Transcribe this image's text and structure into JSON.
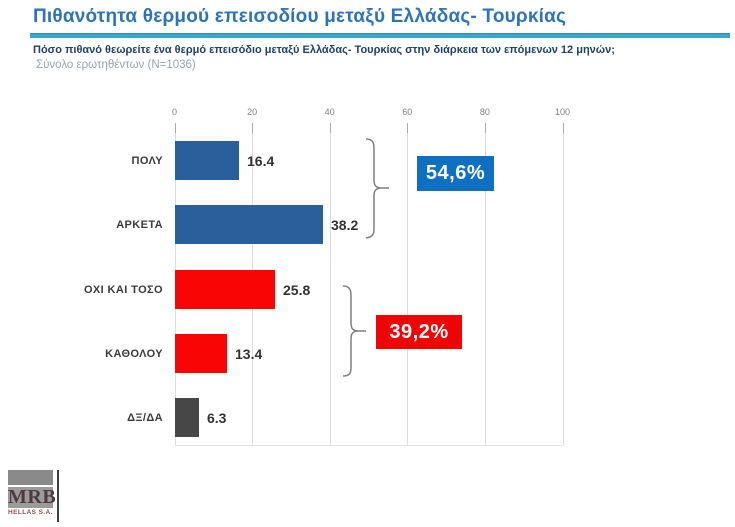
{
  "header": {
    "title": "Πιθανότητα θερμού επεισοδίου μεταξύ Ελλάδας- Τουρκίας",
    "question": "Πόσο πιθανό θεωρείτε ένα θερμό επεισόδιο μεταξύ Ελλάδας- Τουρκίας στην διάρκεια των επόμενων 12 μηνών;",
    "sample": "Σύνολο ερωτηθέντων (N=1036)"
  },
  "chart_data": {
    "type": "bar",
    "orientation": "horizontal",
    "categories": [
      "ΠΟΛΥ",
      "ΑΡΚΕΤΑ",
      "ΟΧΙ ΚΑΙ ΤΟΣΟ",
      "ΚΑΘΟΛΟΥ",
      "ΔΞ/ΔΑ"
    ],
    "values": [
      16.4,
      38.2,
      25.8,
      13.4,
      6.3
    ],
    "value_labels": [
      "16.4",
      "38.2",
      "25.8",
      "13.4",
      "6.3"
    ],
    "bar_colors": [
      "#2A5F9C",
      "#2A5F9C",
      "#FA0505",
      "#FA0505",
      "#474747"
    ],
    "xlim": [
      0,
      100
    ],
    "x_ticks": [
      "0",
      "20",
      "40",
      "60",
      "80",
      "100"
    ],
    "grid": true,
    "groups": [
      {
        "label": "54,6%",
        "members": [
          "ΠΟΛΥ",
          "ΑΡΚΕΤΑ"
        ],
        "color": "#0F70C2"
      },
      {
        "label": "39,2%",
        "members": [
          "ΟΧΙ ΚΑΙ ΤΟΣΟ",
          "ΚΑΘΟΛΟΥ"
        ],
        "color": "#EE0404"
      }
    ]
  },
  "colors": {
    "title_blue": "#2E74B5",
    "rule_teal": "#3BA6C9",
    "bar_blue": "#2A5F9C",
    "bar_red": "#FA0505",
    "bar_gray": "#474747",
    "badge_blue": "#0F70C2",
    "badge_red": "#EE0404"
  },
  "logo": {
    "name": "MRB",
    "sub": "HELLAS S.A."
  }
}
